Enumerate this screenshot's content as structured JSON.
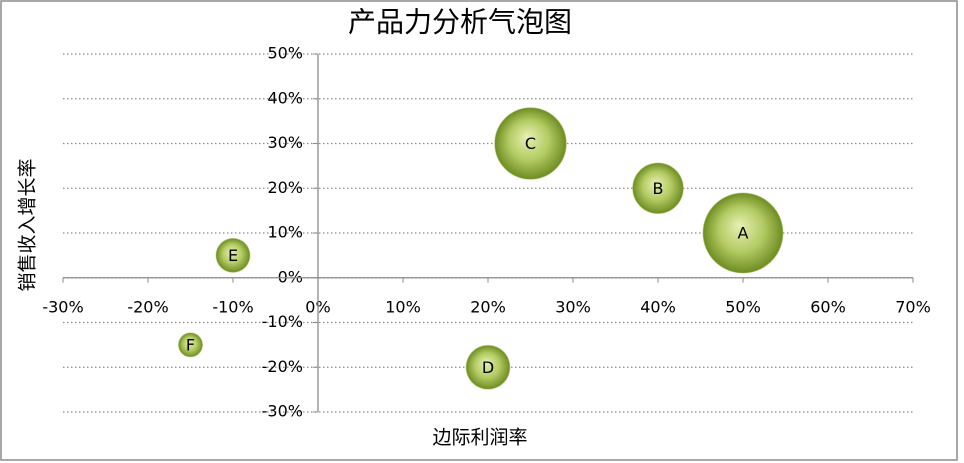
{
  "chart_data": {
    "type": "bubble",
    "title": "产品力分析气泡图",
    "x_label": "边际利润率",
    "y_label": "销售收入增长率",
    "series": [
      {
        "color": "#9bbb59",
        "labels": [
          "A",
          "B",
          "C",
          "D",
          "E",
          "F"
        ],
        "x": [
          50,
          40,
          25,
          20,
          -10,
          -15
        ],
        "values": [
          10,
          20,
          30,
          -20,
          5,
          -15
        ],
        "sizes": [
          100,
          40,
          80,
          30,
          18,
          9
        ]
      }
    ],
    "xlim": [
      -30,
      70
    ],
    "xticks": [
      {
        "value": -30,
        "label": "-30%"
      },
      {
        "value": -20,
        "label": "-20%"
      },
      {
        "value": -10,
        "label": "-10%"
      },
      {
        "value": 0,
        "label": "0%"
      },
      {
        "value": 10,
        "label": "10%"
      },
      {
        "value": 20,
        "label": "20%"
      },
      {
        "value": 30,
        "label": "30%"
      },
      {
        "value": 40,
        "label": "40%"
      },
      {
        "value": 50,
        "label": "50%"
      },
      {
        "value": 60,
        "label": "60%"
      },
      {
        "value": 70,
        "label": "70%"
      }
    ],
    "ylim": [
      -30,
      50
    ],
    "yticks": [
      {
        "value": -30,
        "label": "-30%"
      },
      {
        "value": -20,
        "label": "-20%"
      },
      {
        "value": -10,
        "label": "-10%"
      },
      {
        "value": 0,
        "label": "0%"
      },
      {
        "value": 10,
        "label": "10%"
      },
      {
        "value": 20,
        "label": "20%"
      },
      {
        "value": 30,
        "label": "30%"
      },
      {
        "value": 40,
        "label": "40%"
      },
      {
        "value": 50,
        "label": "50%"
      }
    ],
    "grid": true
  }
}
